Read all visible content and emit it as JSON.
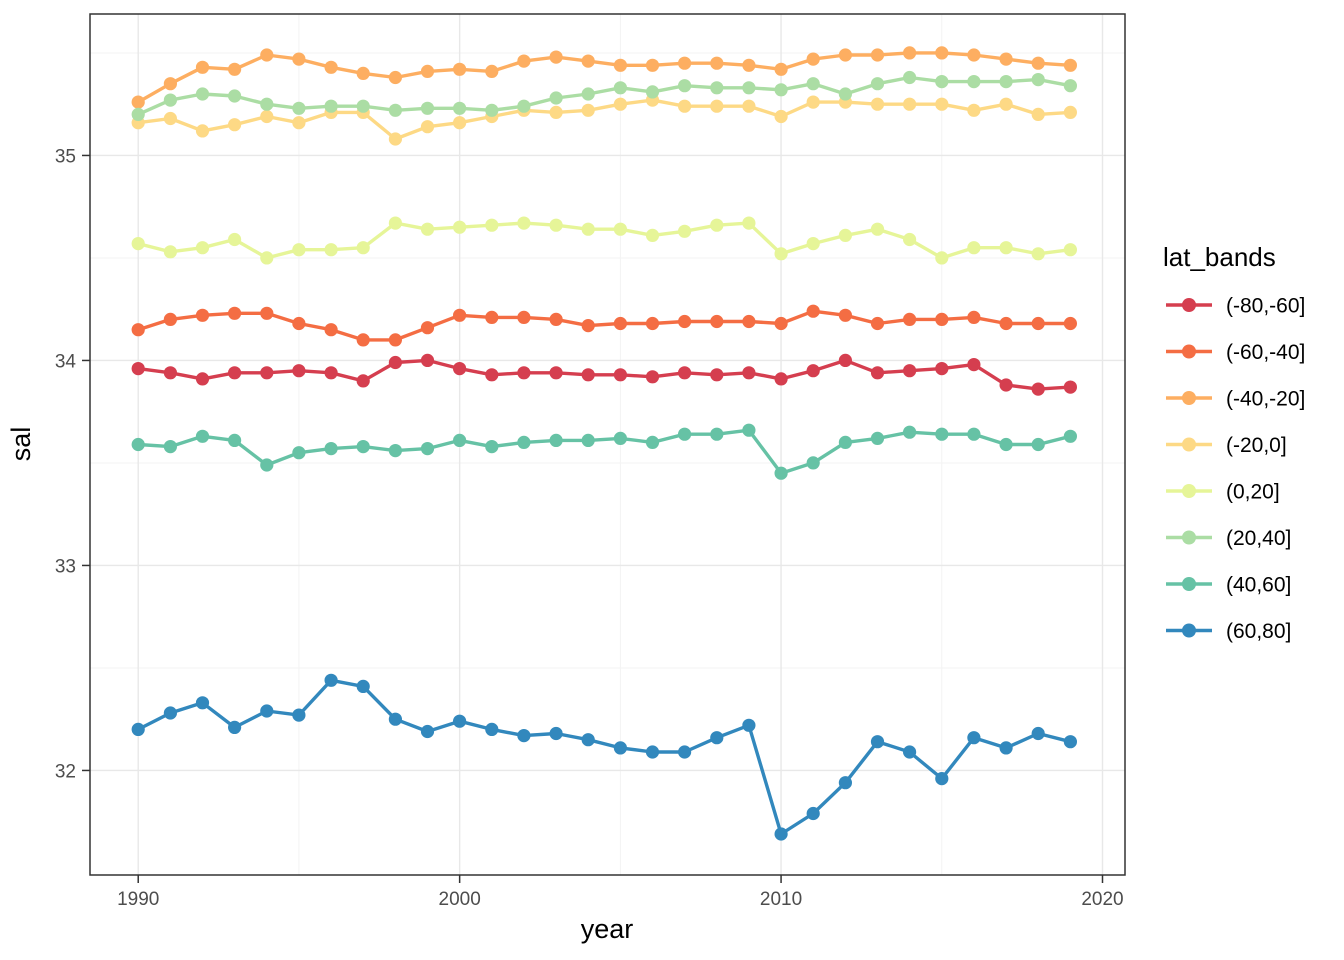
{
  "chart_data": {
    "type": "line",
    "title": "",
    "xlabel": "year",
    "ylabel": "sal",
    "legend_title": "lat_bands",
    "legend_position": "right",
    "grid": "on",
    "background": "#ffffff",
    "panel_border_color": "#333333",
    "major_grid_color": "#e8e8e8",
    "minor_grid_color": "#f3f3f3",
    "tick_text_color": "#4d4d4d",
    "x_ticks": [
      1990,
      2000,
      2010,
      2020
    ],
    "y_ticks": [
      32,
      33,
      34,
      35
    ],
    "x_minor": [
      1995,
      2005,
      2015
    ],
    "y_minor": [
      32.5,
      33.5,
      34.5,
      35.5
    ],
    "xlim": [
      1988.5,
      2020.7
    ],
    "ylim": [
      31.49,
      35.69
    ],
    "x": [
      1990,
      1991,
      1992,
      1993,
      1994,
      1995,
      1996,
      1997,
      1998,
      1999,
      2000,
      2001,
      2002,
      2003,
      2004,
      2005,
      2006,
      2007,
      2008,
      2009,
      2010,
      2011,
      2012,
      2013,
      2014,
      2015,
      2016,
      2017,
      2018,
      2019
    ],
    "series": [
      {
        "name": "(-80,-60]",
        "color": "#d53e4f",
        "values": [
          33.96,
          33.94,
          33.91,
          33.94,
          33.94,
          33.95,
          33.94,
          33.9,
          33.99,
          34.0,
          33.96,
          33.93,
          33.94,
          33.94,
          33.93,
          33.93,
          33.92,
          33.94,
          33.93,
          33.94,
          33.91,
          33.95,
          34.0,
          33.94,
          33.95,
          33.96,
          33.98,
          33.88,
          33.86,
          33.87
        ]
      },
      {
        "name": "(-60,-40]",
        "color": "#f46d43",
        "values": [
          34.15,
          34.2,
          34.22,
          34.23,
          34.23,
          34.18,
          34.15,
          34.1,
          34.1,
          34.16,
          34.22,
          34.21,
          34.21,
          34.2,
          34.17,
          34.18,
          34.18,
          34.19,
          34.19,
          34.19,
          34.18,
          34.24,
          34.22,
          34.18,
          34.2,
          34.2,
          34.21,
          34.18,
          34.18,
          34.18
        ]
      },
      {
        "name": "(-40,-20]",
        "color": "#fdae61",
        "values": [
          35.26,
          35.35,
          35.43,
          35.42,
          35.49,
          35.47,
          35.43,
          35.4,
          35.38,
          35.41,
          35.42,
          35.41,
          35.46,
          35.48,
          35.46,
          35.44,
          35.44,
          35.45,
          35.45,
          35.44,
          35.42,
          35.47,
          35.49,
          35.49,
          35.5,
          35.5,
          35.49,
          35.47,
          35.45,
          35.44
        ]
      },
      {
        "name": "(-20,0]",
        "color": "#fdd985",
        "values": [
          35.16,
          35.18,
          35.12,
          35.15,
          35.19,
          35.16,
          35.21,
          35.21,
          35.08,
          35.14,
          35.16,
          35.19,
          35.22,
          35.21,
          35.22,
          35.25,
          35.27,
          35.24,
          35.24,
          35.24,
          35.19,
          35.26,
          35.26,
          35.25,
          35.25,
          35.25,
          35.22,
          35.25,
          35.2,
          35.21
        ]
      },
      {
        "name": "(0,20]",
        "color": "#e6f598",
        "values": [
          34.57,
          34.53,
          34.55,
          34.59,
          34.5,
          34.54,
          34.54,
          34.55,
          34.67,
          34.64,
          34.65,
          34.66,
          34.67,
          34.66,
          34.64,
          34.64,
          34.61,
          34.63,
          34.66,
          34.67,
          34.52,
          34.57,
          34.61,
          34.64,
          34.59,
          34.5,
          34.55,
          34.55,
          34.52,
          34.54
        ]
      },
      {
        "name": "(20,40]",
        "color": "#abdda4",
        "values": [
          35.2,
          35.27,
          35.3,
          35.29,
          35.25,
          35.23,
          35.24,
          35.24,
          35.22,
          35.23,
          35.23,
          35.22,
          35.24,
          35.28,
          35.3,
          35.33,
          35.31,
          35.34,
          35.33,
          35.33,
          35.32,
          35.35,
          35.3,
          35.35,
          35.38,
          35.36,
          35.36,
          35.36,
          35.37,
          35.34
        ]
      },
      {
        "name": "(40,60]",
        "color": "#66c2a5",
        "values": [
          33.59,
          33.58,
          33.63,
          33.61,
          33.49,
          33.55,
          33.57,
          33.58,
          33.56,
          33.57,
          33.61,
          33.58,
          33.6,
          33.61,
          33.61,
          33.62,
          33.6,
          33.64,
          33.64,
          33.66,
          33.45,
          33.5,
          33.6,
          33.62,
          33.65,
          33.64,
          33.64,
          33.59,
          33.59,
          33.63
        ]
      },
      {
        "name": "(60,80]",
        "color": "#3288bd",
        "values": [
          32.2,
          32.28,
          32.33,
          32.21,
          32.29,
          32.27,
          32.44,
          32.41,
          32.25,
          32.19,
          32.24,
          32.2,
          32.17,
          32.18,
          32.15,
          32.11,
          32.09,
          32.09,
          32.16,
          32.22,
          31.69,
          31.79,
          31.94,
          32.14,
          32.09,
          31.96,
          32.16,
          32.11,
          32.18,
          32.14
        ]
      }
    ]
  }
}
